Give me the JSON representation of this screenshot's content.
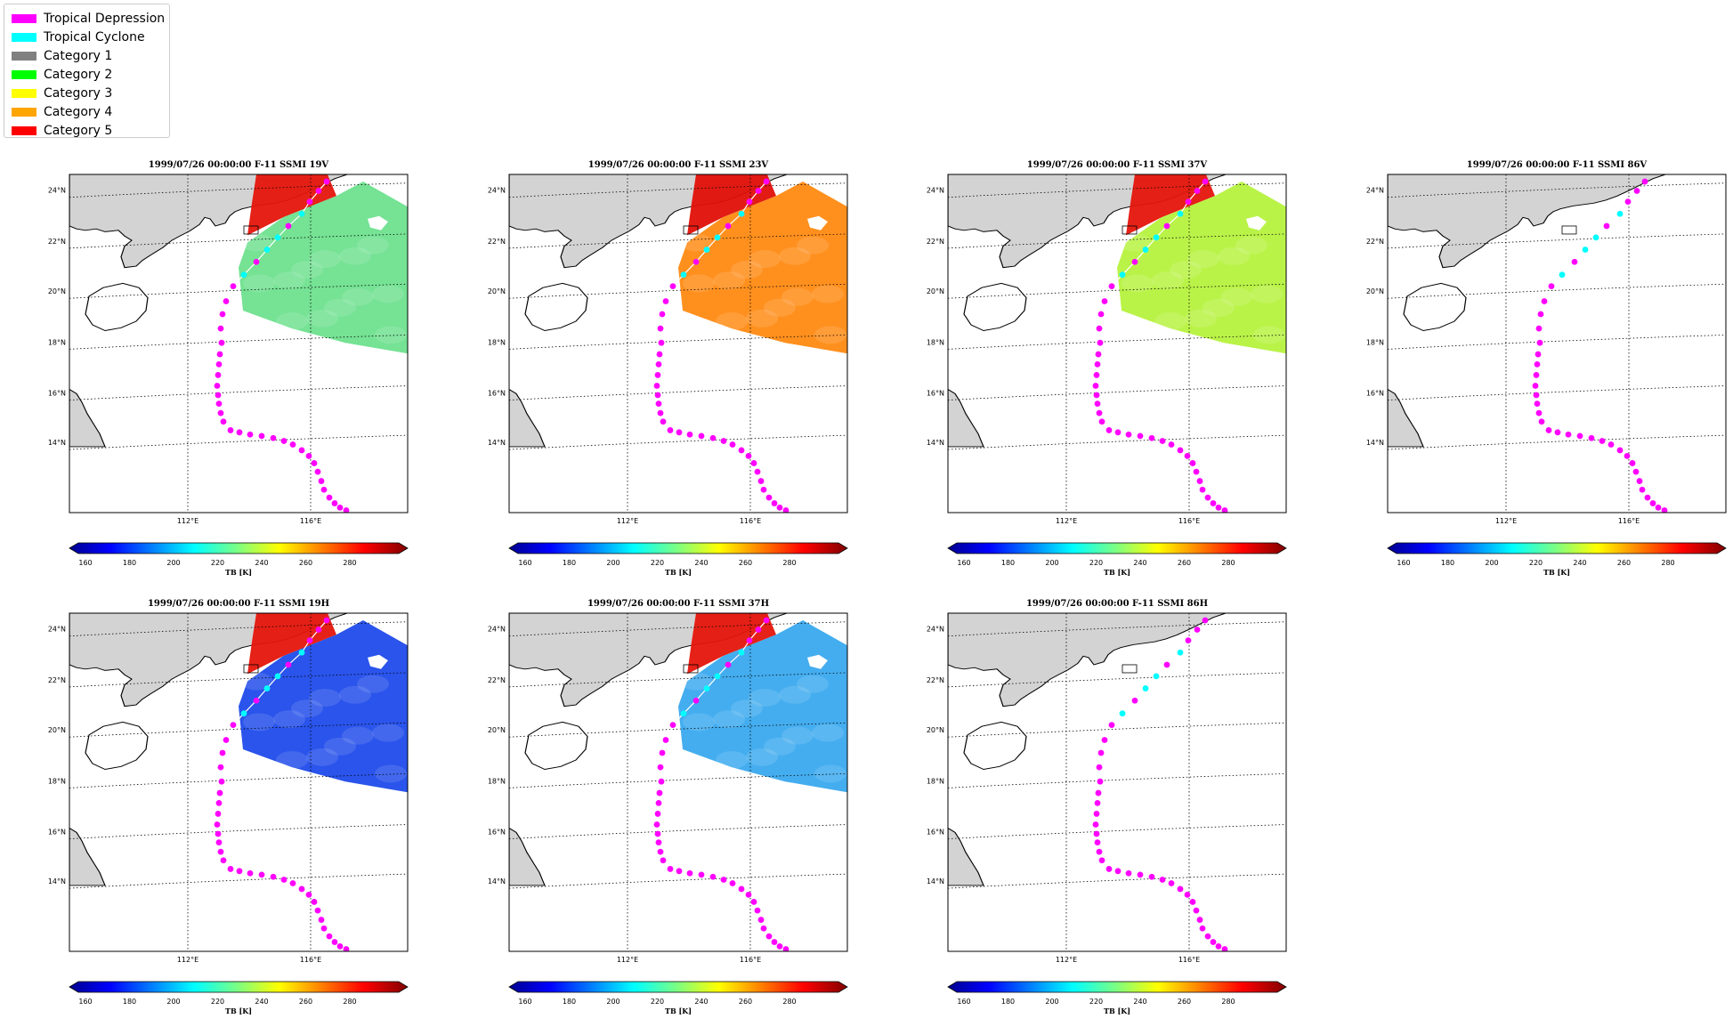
{
  "legend": {
    "items": [
      {
        "label": "Tropical Depression",
        "color": "#ff00ff"
      },
      {
        "label": "Tropical Cyclone",
        "color": "#00ffff"
      },
      {
        "label": "Category 1",
        "color": "#808080"
      },
      {
        "label": "Category 2",
        "color": "#00ff00"
      },
      {
        "label": "Category 3",
        "color": "#ffff00"
      },
      {
        "label": "Category 4",
        "color": "#ffa500"
      },
      {
        "label": "Category 5",
        "color": "#ff0000"
      }
    ]
  },
  "map": {
    "lat_labels": [
      "24°N",
      "22°N",
      "20°N",
      "18°N",
      "16°N",
      "14°N"
    ],
    "lon_labels": [
      "112°E",
      "116°E"
    ],
    "land_color": "#d3d3d3"
  },
  "colorbar": {
    "ticks": [
      "160",
      "180",
      "200",
      "220",
      "240",
      "260",
      "280"
    ],
    "label": "TB [K]",
    "colormap": "jet"
  },
  "panels": [
    {
      "title": "1999/07/26 00:00:00  F-11 SSMI 19V",
      "swath": true,
      "ocean": "#6ee08e",
      "warm": "#e5150b",
      "track_line": true
    },
    {
      "title": "1999/07/26 00:00:00  F-11 SSMI 23V",
      "swath": true,
      "ocean": "#ff8a12",
      "warm": "#e01008",
      "track_line": true
    },
    {
      "title": "1999/07/26 00:00:00  F-11 SSMI 37V",
      "swath": true,
      "ocean": "#b6f23e",
      "warm": "#e5150b",
      "track_line": true
    },
    {
      "title": "1999/07/26 00:00:00  F-11 SSMI 86V",
      "swath": false,
      "ocean": "",
      "warm": "",
      "track_line": false
    },
    {
      "title": "1999/07/26 00:00:00  F-11 SSMI 19H",
      "swath": true,
      "ocean": "#1f4bea",
      "warm": "#e5150b",
      "track_line": true
    },
    {
      "title": "1999/07/26 00:00:00  F-11 SSMI 37H",
      "swath": true,
      "ocean": "#3aa9ee",
      "warm": "#e5150b",
      "track_line": true
    },
    {
      "title": "1999/07/26 00:00:00  F-11 SSMI 86H",
      "swath": false,
      "ocean": "",
      "warm": "",
      "track_line": false
    }
  ]
}
